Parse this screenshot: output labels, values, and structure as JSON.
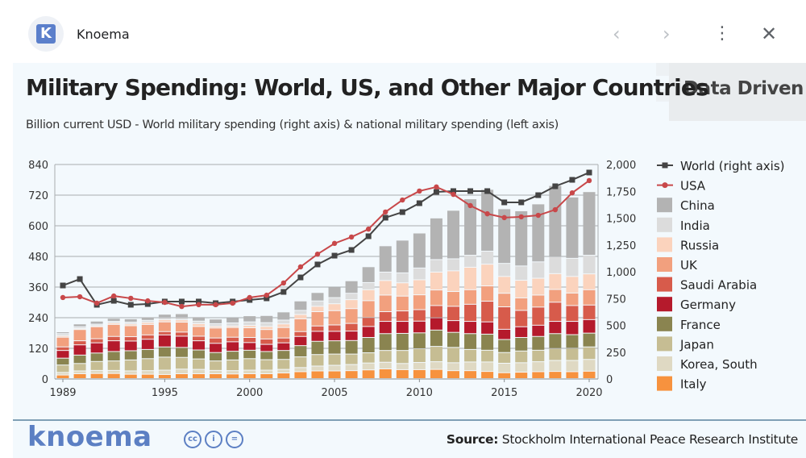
{
  "window": {
    "app_name": "Knoema",
    "app_icon_letter": "K",
    "back_icon": "chevron-left-icon",
    "forward_icon": "chevron-right-icon",
    "more_icon": "more-vert-icon",
    "close_icon": "close-icon"
  },
  "header": {
    "title": "Military Spending: World, US, and Other Major Countries",
    "subtitle": "Billion current USD - World military spending (right axis) & national military spending (left axis)",
    "badge": "Data Driven"
  },
  "footer": {
    "logo": "knoema",
    "license_icons": [
      "cc",
      "i",
      "="
    ],
    "source_label": "Source:",
    "source_text": "Stockholm International Peace Research Institute"
  },
  "colors": {
    "World": "#444444",
    "USA": "#c8484a",
    "China": "#b3b3b3",
    "India": "#dcdcdc",
    "Russia": "#fbd3bd",
    "UK": "#f2a07e",
    "Saudi Arabia": "#d75b4b",
    "Germany": "#b51a2c",
    "France": "#8a8450",
    "Japan": "#c6bd93",
    "Korea, South": "#dfd9c3",
    "Italy": "#f7923e"
  },
  "chart_data": {
    "type": "bar",
    "subtype": "stacked bar + line (dual axis)",
    "title": "Military Spending: World, US, and Other Major Countries",
    "subtitle": "Billion current USD - World military spending (right axis) & national military spending (left axis)",
    "x": [
      1989,
      1990,
      1991,
      1992,
      1993,
      1994,
      1995,
      1996,
      1997,
      1998,
      1999,
      2000,
      2001,
      2002,
      2003,
      2004,
      2005,
      2006,
      2007,
      2008,
      2009,
      2010,
      2011,
      2012,
      2013,
      2014,
      2015,
      2016,
      2017,
      2018,
      2019,
      2020
    ],
    "x_ticks": [
      "1989",
      "1995",
      "2000",
      "2005",
      "2010",
      "2015",
      "2020"
    ],
    "left_axis": {
      "label": "",
      "range": [
        0,
        840
      ],
      "ticks": [
        "0",
        "120",
        "240",
        "360",
        "480",
        "600",
        "720",
        "840"
      ]
    },
    "right_axis": {
      "label": "",
      "range": [
        0,
        2000
      ],
      "ticks": [
        "0",
        "250",
        "500",
        "750",
        "1,000",
        "1,250",
        "1,500",
        "1,750",
        "2,000"
      ]
    },
    "grid": true,
    "legend_position": "right",
    "line_series": [
      {
        "name": "World (right axis)",
        "axis": "right",
        "marker": "square",
        "color_key": "World",
        "values": [
          872,
          932,
          692,
          729,
          692,
          699,
          722,
          722,
          722,
          707,
          722,
          737,
          752,
          812,
          947,
          1068,
          1150,
          1203,
          1331,
          1504,
          1556,
          1639,
          1744,
          1752,
          1752,
          1752,
          1647,
          1647,
          1714,
          1797,
          1857,
          1925
        ]
      },
      {
        "name": "USA",
        "axis": "left",
        "marker": "circle",
        "color_key": "USA",
        "values": [
          319,
          322,
          297,
          325,
          316,
          306,
          300,
          284,
          291,
          291,
          297,
          319,
          328,
          376,
          439,
          489,
          531,
          556,
          587,
          654,
          701,
          736,
          752,
          723,
          679,
          647,
          632,
          635,
          641,
          663,
          729,
          777
        ]
      }
    ],
    "stack_order_bottom_to_top": [
      "Italy",
      "Korea, South",
      "Japan",
      "France",
      "Germany",
      "Saudi Arabia",
      "UK",
      "Russia",
      "India",
      "China"
    ],
    "series": [
      {
        "name": "Italy",
        "values": [
          14,
          19,
          20,
          20,
          17,
          17,
          16,
          19,
          19,
          19,
          18,
          19,
          19,
          22,
          27,
          30,
          30,
          31,
          34,
          38,
          35,
          35,
          36,
          31,
          31,
          28,
          23,
          25,
          27,
          28,
          27,
          29
        ]
      },
      {
        "name": "Korea, South",
        "values": [
          10,
          11,
          12,
          12,
          13,
          14,
          17,
          18,
          17,
          13,
          13,
          14,
          14,
          14,
          16,
          19,
          22,
          24,
          27,
          26,
          24,
          28,
          30,
          31,
          34,
          37,
          37,
          37,
          39,
          43,
          44,
          46
        ]
      },
      {
        "name": "Japan",
        "values": [
          29,
          29,
          35,
          37,
          43,
          47,
          51,
          46,
          41,
          37,
          42,
          45,
          41,
          39,
          42,
          45,
          44,
          41,
          40,
          46,
          51,
          54,
          60,
          60,
          49,
          46,
          42,
          46,
          45,
          47,
          48,
          49
        ]
      },
      {
        "name": "France",
        "values": [
          27,
          33,
          33,
          37,
          36,
          36,
          40,
          39,
          35,
          33,
          34,
          33,
          32,
          35,
          44,
          52,
          52,
          53,
          60,
          66,
          67,
          62,
          64,
          59,
          62,
          63,
          51,
          53,
          54,
          58,
          53,
          54
        ]
      },
      {
        "name": "Germany",
        "values": [
          30,
          40,
          40,
          42,
          38,
          40,
          47,
          44,
          36,
          36,
          37,
          30,
          28,
          30,
          36,
          39,
          37,
          37,
          43,
          48,
          47,
          46,
          48,
          46,
          48,
          48,
          40,
          42,
          44,
          48,
          52,
          53
        ]
      },
      {
        "name": "Saudi Arabia",
        "values": [
          14,
          16,
          16,
          17,
          17,
          17,
          13,
          16,
          18,
          21,
          18,
          20,
          21,
          19,
          19,
          21,
          25,
          30,
          35,
          38,
          41,
          45,
          48,
          56,
          67,
          81,
          88,
          64,
          71,
          75,
          62,
          57
        ]
      },
      {
        "name": "UK",
        "values": [
          38,
          44,
          47,
          47,
          43,
          41,
          38,
          39,
          38,
          39,
          38,
          38,
          37,
          41,
          50,
          56,
          56,
          58,
          66,
          65,
          58,
          58,
          61,
          58,
          57,
          60,
          53,
          49,
          47,
          50,
          49,
          60
        ]
      },
      {
        "name": "Russia",
        "values": [
          6,
          4,
          4,
          6,
          7,
          8,
          9,
          9,
          11,
          7,
          6,
          9,
          12,
          14,
          17,
          21,
          27,
          35,
          43,
          57,
          52,
          59,
          70,
          81,
          88,
          85,
          66,
          69,
          66,
          62,
          65,
          62
        ]
      },
      {
        "name": "India",
        "values": [
          8,
          7,
          6,
          6,
          7,
          8,
          8,
          9,
          10,
          10,
          12,
          14,
          15,
          15,
          16,
          21,
          24,
          25,
          28,
          33,
          39,
          46,
          49,
          47,
          47,
          51,
          51,
          56,
          64,
          67,
          71,
          73
        ]
      },
      {
        "name": "China",
        "values": [
          7,
          11,
          12,
          12,
          13,
          13,
          13,
          15,
          17,
          18,
          21,
          24,
          28,
          32,
          37,
          33,
          42,
          49,
          62,
          103,
          128,
          137,
          163,
          190,
          221,
          242,
          214,
          216,
          227,
          278,
          240,
          249
        ]
      }
    ]
  }
}
